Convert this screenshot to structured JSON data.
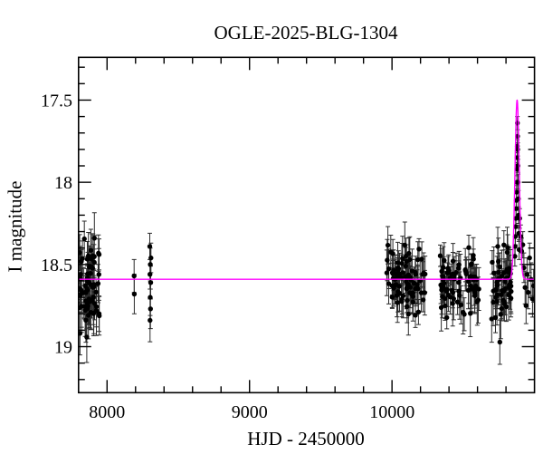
{
  "figure": {
    "title": "OGLE-2025-BLG-1304",
    "xlabel": "HJD - 2450000",
    "ylabel": "I magnitude"
  },
  "chart_data": {
    "type": "scatter",
    "title": "OGLE-2025-BLG-1304",
    "xlabel": "HJD - 2450000",
    "ylabel": "I magnitude",
    "x_range": [
      7800,
      11000
    ],
    "y_range_mag": [
      17.24,
      19.28
    ],
    "y_axis_inverted": true,
    "grid": false,
    "x_major_ticks": [
      8000,
      9000,
      10000
    ],
    "x_tick_labels": [
      "8000",
      "9000",
      "10000"
    ],
    "x_minor_tick_step": 200,
    "y_major_ticks": [
      17.5,
      18,
      18.5,
      19
    ],
    "y_tick_labels": [
      "17.5",
      "18",
      "18.5",
      "19"
    ],
    "y_minor_tick_step": 0.1,
    "colors": {
      "background": "#ffffff",
      "frame": "#000000",
      "points": "#000000",
      "error_bars": "#2b2b2b",
      "model_line": "#ff00ff"
    },
    "model_curve": {
      "shape": "microlensing-peak-on-flat-baseline",
      "baseline_mag": 18.59,
      "peak_time": 10878,
      "peak_mag": 17.5,
      "sigma_days": 15
    },
    "point_clusters": [
      {
        "name": "season-2017",
        "seed": 11,
        "t_min": 7801,
        "t_max": 7948,
        "n": 70,
        "mag_mean": 18.63,
        "mag_sigma": 0.13,
        "mag_clamp": [
          18.34,
          19.0
        ],
        "err_min": 0.07,
        "err_spread": 0.1
      },
      {
        "name": "season-2022-23",
        "seed": 42,
        "t_min": 9961,
        "t_max": 10234,
        "n": 85,
        "mag_mean": 18.6,
        "mag_sigma": 0.095,
        "mag_clamp": [
          18.36,
          18.95
        ],
        "err_min": 0.06,
        "err_spread": 0.09
      },
      {
        "name": "season-2023-24",
        "seed": 53,
        "t_min": 10330,
        "t_max": 10610,
        "n": 75,
        "mag_mean": 18.6,
        "mag_sigma": 0.095,
        "mag_clamp": [
          18.36,
          18.95
        ],
        "err_min": 0.06,
        "err_spread": 0.09
      },
      {
        "name": "season-2024-25",
        "seed": 64,
        "t_min": 10695,
        "t_max": 10840,
        "n": 55,
        "mag_mean": 18.62,
        "mag_sigma": 0.105,
        "mag_clamp": [
          18.36,
          18.98
        ],
        "err_min": 0.07,
        "err_spread": 0.09
      }
    ],
    "points_sparse": [
      [
        8190,
        18.57,
        0.1
      ],
      [
        8191,
        18.68,
        0.12
      ],
      [
        8300,
        18.39,
        0.08
      ],
      [
        8304,
        18.5,
        0.1
      ],
      [
        8301,
        18.56,
        0.09
      ],
      [
        8306,
        18.61,
        0.1
      ],
      [
        8303,
        18.7,
        0.11
      ],
      [
        8305,
        18.77,
        0.12
      ],
      [
        8302,
        18.84,
        0.13
      ],
      [
        8308,
        18.46,
        0.09
      ]
    ],
    "points_peak": [
      [
        10862,
        18.45,
        0.06
      ],
      [
        10864,
        18.39,
        0.06
      ],
      [
        10866,
        18.33,
        0.05
      ],
      [
        10868,
        18.27,
        0.05
      ],
      [
        10870,
        18.22,
        0.05
      ],
      [
        10871,
        18.16,
        0.05
      ],
      [
        10873,
        18.11,
        0.05
      ],
      [
        10874,
        18.06,
        0.04
      ],
      [
        10876,
        18.0,
        0.04
      ],
      [
        10877,
        17.92,
        0.04
      ],
      [
        10878,
        17.85,
        0.04
      ],
      [
        10879,
        17.78,
        0.04
      ],
      [
        10880,
        17.64,
        0.04
      ],
      [
        10881,
        17.72,
        0.04
      ],
      [
        10882,
        17.8,
        0.04
      ],
      [
        10884,
        17.9,
        0.04
      ],
      [
        10885,
        18.0,
        0.05
      ],
      [
        10887,
        18.1,
        0.05
      ],
      [
        10888,
        18.2,
        0.05
      ],
      [
        10890,
        18.31,
        0.05
      ],
      [
        10892,
        18.41,
        0.06
      ]
    ],
    "points_post_peak": [
      [
        10896,
        18.22,
        0.06
      ],
      [
        10903,
        18.33,
        0.07
      ],
      [
        10910,
        18.42,
        0.08
      ],
      [
        10918,
        18.38,
        0.08
      ],
      [
        10926,
        18.52,
        0.09
      ],
      [
        10934,
        18.64,
        0.1
      ],
      [
        10941,
        18.75,
        0.11
      ],
      [
        10948,
        18.56,
        0.1
      ],
      [
        10956,
        18.67,
        0.1
      ],
      [
        10966,
        18.46,
        0.09
      ],
      [
        10976,
        18.59,
        0.1
      ],
      [
        10986,
        18.71,
        0.11
      ],
      [
        10994,
        18.63,
        0.1
      ]
    ]
  }
}
